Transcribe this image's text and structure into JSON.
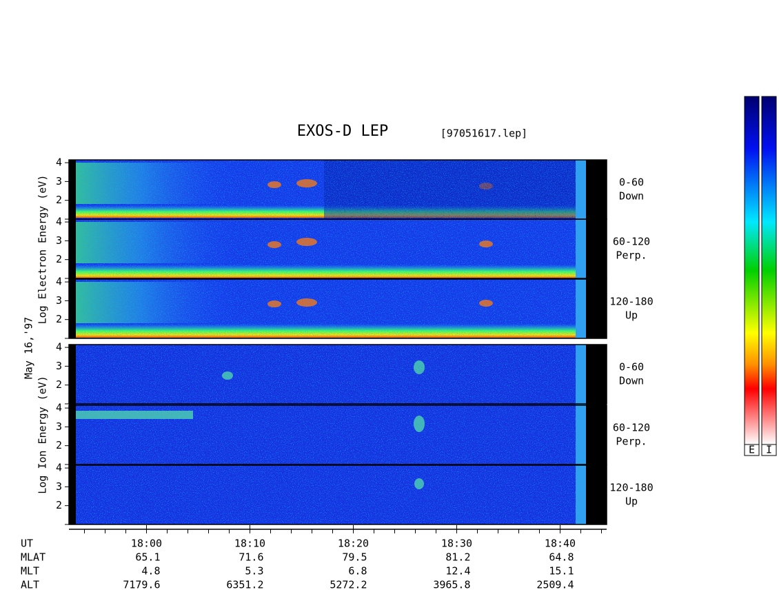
{
  "chart_data": {
    "type": "spectrogram",
    "title": "EXOS-D LEP",
    "file": "[97051617.lep]",
    "date": "May 16,'97",
    "groups": [
      {
        "ylabel": "Log Electron Energy (eV)",
        "panels": [
          {
            "labels": [
              "0-60",
              "Down"
            ]
          },
          {
            "labels": [
              "60-120",
              "Perp."
            ]
          },
          {
            "labels": [
              "120-180",
              "Up"
            ]
          }
        ]
      },
      {
        "ylabel": "Log Ion Energy (eV)",
        "panels": [
          {
            "labels": [
              "0-60",
              "Down"
            ]
          },
          {
            "labels": [
              "60-120",
              "Perp."
            ]
          },
          {
            "labels": [
              "120-180",
              "Up"
            ]
          }
        ]
      }
    ],
    "ylim": [
      1,
      4.15
    ],
    "yticks": [
      2,
      3,
      4
    ],
    "xlabel": "UT",
    "xlim": [
      1072.5,
      1124.5
    ],
    "xticks": [
      {
        "value": 1080,
        "label": "18:00"
      },
      {
        "value": 1090,
        "label": "18:10"
      },
      {
        "value": 1100,
        "label": "18:20"
      },
      {
        "value": 1110,
        "label": "18:30"
      },
      {
        "value": 1120,
        "label": "18:40"
      }
    ],
    "xminorticks": [
      1074,
      1076,
      1078,
      1082,
      1084,
      1086,
      1088,
      1092,
      1094,
      1096,
      1098,
      1102,
      1104,
      1106,
      1108,
      1112,
      1114,
      1116,
      1118,
      1122,
      1124
    ],
    "ephemeris": [
      {
        "name": "MLAT",
        "values": [
          65.1,
          71.6,
          79.5,
          81.2,
          64.8
        ]
      },
      {
        "name": "MLT",
        "values": [
          4.8,
          5.3,
          6.8,
          12.4,
          15.1
        ]
      },
      {
        "name": "ALT",
        "values": [
          7179.6,
          6351.2,
          5272.2,
          3965.8,
          2509.4
        ]
      }
    ],
    "colorbar": {
      "labels": [
        "E",
        "I"
      ]
    }
  }
}
